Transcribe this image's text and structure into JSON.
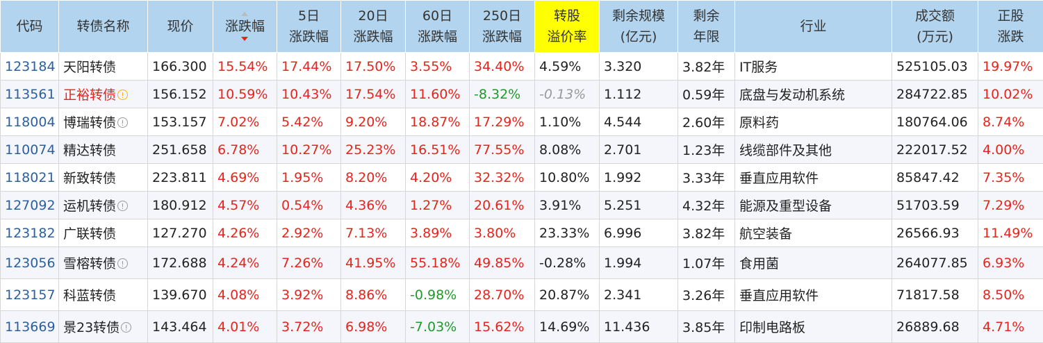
{
  "headers": {
    "code": "代码",
    "name": "转债名称",
    "price": "现价",
    "change": "涨跌幅",
    "chg5": [
      "5日",
      "涨跌幅"
    ],
    "chg20": [
      "20日",
      "涨跌幅"
    ],
    "chg60": [
      "60日",
      "涨跌幅"
    ],
    "chg250": [
      "250日",
      "涨跌幅"
    ],
    "premium": [
      "转股",
      "溢价率"
    ],
    "scale": [
      "剩余规模",
      "(亿元)"
    ],
    "years": [
      "剩余",
      "年限"
    ],
    "industry": "行业",
    "volume": [
      "成交额",
      "(万元)"
    ],
    "stock_chg": [
      "正股",
      "涨跌"
    ]
  },
  "colors": {
    "header_bg": "#b3d4ee",
    "highlight": "#ffff00",
    "up": "#e8231c",
    "down": "#1f9a2a",
    "code": "#2a5fa0"
  },
  "rows": [
    {
      "code": "123184",
      "name": "天阳转债",
      "icon": "",
      "price": "166.300",
      "change": "15.54%",
      "chg5": "17.44%",
      "chg20": "17.50%",
      "chg60": "3.55%",
      "chg60_color": "red",
      "chg250": "34.40%",
      "chg250_color": "red",
      "premium": "4.59%",
      "premium_style": "",
      "scale": "3.320",
      "years": "3.82年",
      "industry": "IT服务",
      "volume": "525105.03",
      "stock_chg": "19.97%"
    },
    {
      "code": "113561",
      "name": "正裕转债",
      "icon": "warn",
      "price": "156.152",
      "change": "10.59%",
      "chg5": "10.43%",
      "chg20": "17.54%",
      "chg60": "11.60%",
      "chg60_color": "red",
      "chg250": "-8.32%",
      "chg250_color": "green",
      "premium": "-0.13%",
      "premium_style": "grey",
      "scale": "1.112",
      "years": "0.59年",
      "industry": "底盘与发动机系统",
      "volume": "284722.85",
      "stock_chg": "10.02%"
    },
    {
      "code": "118004",
      "name": "博瑞转债",
      "icon": "info",
      "price": "153.157",
      "change": "7.02%",
      "chg5": "5.42%",
      "chg20": "9.20%",
      "chg60": "18.87%",
      "chg60_color": "red",
      "chg250": "17.29%",
      "chg250_color": "red",
      "premium": "1.10%",
      "premium_style": "",
      "scale": "4.544",
      "years": "2.60年",
      "industry": "原料药",
      "volume": "180764.06",
      "stock_chg": "8.74%"
    },
    {
      "code": "110074",
      "name": "精达转债",
      "icon": "",
      "price": "251.658",
      "change": "6.78%",
      "chg5": "10.27%",
      "chg20": "25.23%",
      "chg60": "16.51%",
      "chg60_color": "red",
      "chg250": "77.55%",
      "chg250_color": "red",
      "premium": "8.08%",
      "premium_style": "",
      "scale": "2.701",
      "years": "1.23年",
      "industry": "线缆部件及其他",
      "volume": "222017.52",
      "stock_chg": "4.00%"
    },
    {
      "code": "118021",
      "name": "新致转债",
      "icon": "",
      "price": "223.811",
      "change": "4.69%",
      "chg5": "1.95%",
      "chg20": "8.20%",
      "chg60": "4.20%",
      "chg60_color": "red",
      "chg250": "32.32%",
      "chg250_color": "red",
      "premium": "10.80%",
      "premium_style": "",
      "scale": "1.992",
      "years": "3.33年",
      "industry": "垂直应用软件",
      "volume": "85847.42",
      "stock_chg": "7.35%"
    },
    {
      "code": "127092",
      "name": "运机转债",
      "icon": "info",
      "price": "180.912",
      "change": "4.57%",
      "chg5": "0.54%",
      "chg20": "4.36%",
      "chg60": "1.27%",
      "chg60_color": "red",
      "chg250": "20.61%",
      "chg250_color": "red",
      "premium": "3.91%",
      "premium_style": "",
      "scale": "5.251",
      "years": "4.32年",
      "industry": "能源及重型设备",
      "volume": "51703.59",
      "stock_chg": "7.29%"
    },
    {
      "code": "123182",
      "name": "广联转债",
      "icon": "",
      "price": "127.270",
      "change": "4.26%",
      "chg5": "2.92%",
      "chg20": "7.13%",
      "chg60": "3.89%",
      "chg60_color": "red",
      "chg250": "3.80%",
      "chg250_color": "red",
      "premium": "23.33%",
      "premium_style": "",
      "scale": "6.996",
      "years": "3.82年",
      "industry": "航空装备",
      "volume": "26566.93",
      "stock_chg": "11.49%"
    },
    {
      "code": "123056",
      "name": "雪榕转债",
      "icon": "info",
      "price": "172.688",
      "change": "4.24%",
      "chg5": "7.26%",
      "chg20": "41.95%",
      "chg60": "55.18%",
      "chg60_color": "red",
      "chg250": "49.85%",
      "chg250_color": "red",
      "premium": "-0.28%",
      "premium_style": "",
      "scale": "1.994",
      "years": "1.07年",
      "industry": "食用菌",
      "volume": "264077.85",
      "stock_chg": "6.93%"
    },
    {
      "code": "123157",
      "name": "科蓝转债",
      "icon": "",
      "price": "139.670",
      "change": "4.08%",
      "chg5": "3.92%",
      "chg20": "8.86%",
      "chg60": "-0.98%",
      "chg60_color": "green",
      "chg250": "28.70%",
      "chg250_color": "red",
      "premium": "20.87%",
      "premium_style": "",
      "scale": "2.341",
      "years": "3.26年",
      "industry": "垂直应用软件",
      "volume": "71817.58",
      "stock_chg": "8.50%"
    },
    {
      "code": "113669",
      "name": "景23转债",
      "icon": "info",
      "price": "143.464",
      "change": "4.01%",
      "chg5": "3.72%",
      "chg20": "6.98%",
      "chg60": "-7.03%",
      "chg60_color": "green",
      "chg250": "15.62%",
      "chg250_color": "red",
      "premium": "14.69%",
      "premium_style": "",
      "scale": "11.436",
      "years": "3.85年",
      "industry": "印制电路板",
      "volume": "26889.68",
      "stock_chg": "4.71%"
    }
  ]
}
